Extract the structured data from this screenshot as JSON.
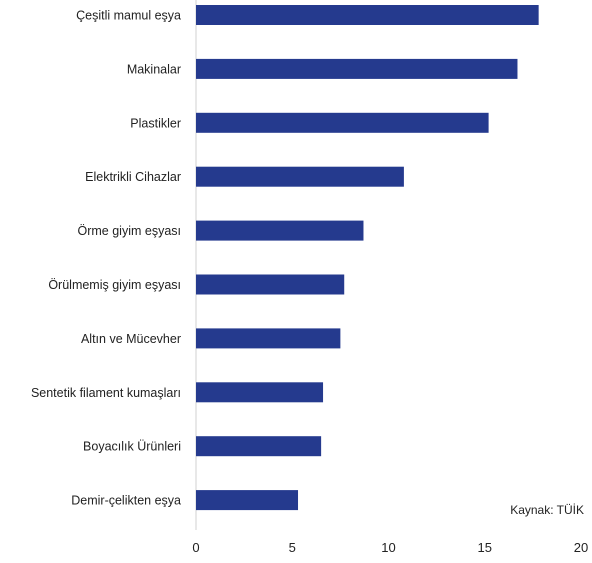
{
  "chart_data": {
    "type": "bar",
    "orientation": "horizontal",
    "categories": [
      "Çeşitli mamul eşya",
      "Makinalar",
      "Plastikler",
      "Elektrikli Cihazlar",
      "Örme giyim eşyası",
      "Örülmemiş giyim eşyası",
      "Altın ve Mücevher",
      "Sentetik filament kumaşları",
      "Boyacılık Ürünleri",
      "Demir-çelikten eşya"
    ],
    "values": [
      17.8,
      16.7,
      15.2,
      10.8,
      8.7,
      7.7,
      7.5,
      6.6,
      6.5,
      5.3
    ],
    "xlim": [
      0,
      20
    ],
    "xticks": [
      0,
      5,
      10,
      15,
      20
    ],
    "bar_color": "#253A8E",
    "grid": false,
    "legend": "none"
  },
  "source_text": "Kaynak: TÜİK"
}
